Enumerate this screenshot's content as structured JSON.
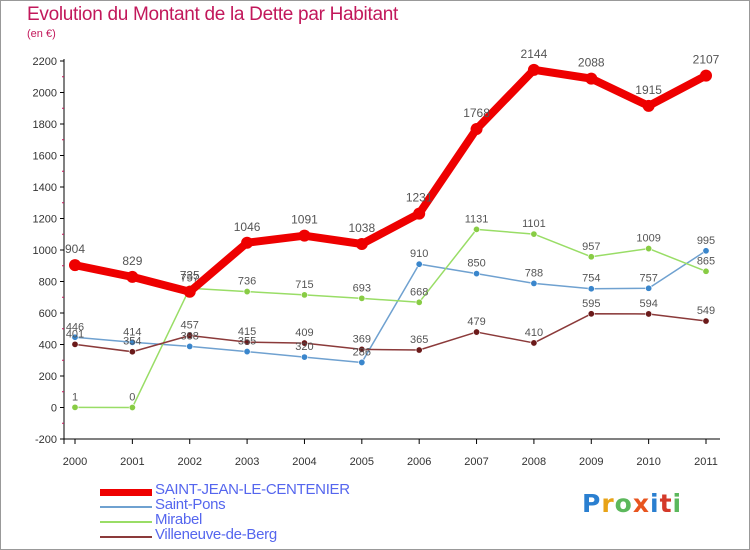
{
  "header": {
    "title": "Evolution du Montant de la Dette par Habitant",
    "subtitle": "(en €)"
  },
  "logo": {
    "text": "Proxiti",
    "colors": [
      "#2a7fd0",
      "#e8a317",
      "#5cb85c",
      "#e8551f",
      "#2a7fd0",
      "#d43a2a",
      "#5cb85c"
    ]
  },
  "chart_data": {
    "type": "line",
    "title": "Evolution du Montant de la Dette par Habitant",
    "subtitle": "(en €)",
    "x": [
      "2000",
      "2001",
      "2002",
      "2003",
      "2004",
      "2005",
      "2006",
      "2007",
      "2008",
      "2009",
      "2010",
      "2011"
    ],
    "ylim": [
      -200,
      2200
    ],
    "yticks": [
      -200,
      0,
      200,
      400,
      600,
      800,
      1000,
      1200,
      1400,
      1600,
      1800,
      2000,
      2200
    ],
    "grid": false,
    "legend": "bottom-left",
    "series": [
      {
        "name": "SAINT-JEAN-LE-CENTENIER",
        "color": "#ee0000",
        "width": 8,
        "values": [
          904,
          829,
          735,
          1046,
          1091,
          1038,
          1231,
          1768,
          2144,
          2088,
          1915,
          2107
        ],
        "labels": [
          "904",
          "829",
          "735",
          "1046",
          "1091",
          "1038",
          "1231",
          "1768",
          "2144",
          "2088",
          "1915",
          "2107"
        ]
      },
      {
        "name": "Saint-Pons",
        "color": "#6fa1d0",
        "marker": "#3a86cc",
        "width": 1.5,
        "values": [
          446,
          414,
          388,
          355,
          320,
          286,
          910,
          850,
          788,
          754,
          757,
          995
        ],
        "labels": [
          "446",
          "414",
          "388",
          "355",
          "320",
          "286",
          "910",
          "850",
          "788",
          "754",
          "757",
          "995"
        ]
      },
      {
        "name": "Mirabel",
        "color": "#99dd66",
        "marker": "#88cc44",
        "width": 1.5,
        "values": [
          1,
          0,
          757,
          736,
          715,
          693,
          668,
          1131,
          1101,
          957,
          1009,
          865
        ],
        "labels": [
          "1",
          "0",
          "757",
          "736",
          "715",
          "693",
          "668",
          "1131",
          "1101",
          "957",
          "1009",
          "865"
        ]
      },
      {
        "name": "Villeneuve-de-Berg",
        "color": "#8b3a3a",
        "marker": "#6b1a1a",
        "width": 1.5,
        "values": [
          401,
          354,
          457,
          415,
          409,
          369,
          365,
          479,
          410,
          595,
          594,
          549
        ],
        "labels": [
          "401",
          "354",
          "457",
          "415",
          "409",
          "369",
          "365",
          "479",
          "410",
          "595",
          "594",
          "549"
        ]
      }
    ]
  }
}
